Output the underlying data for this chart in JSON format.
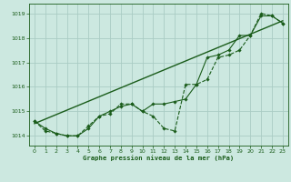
{
  "title": "Graphe pression niveau de la mer (hPa)",
  "bg_color": "#cce8e0",
  "grid_color": "#aaccC4",
  "line_color": "#1a5c1a",
  "xlim": [
    -0.5,
    23.5
  ],
  "ylim": [
    1013.6,
    1019.4
  ],
  "yticks": [
    1014,
    1015,
    1016,
    1017,
    1018,
    1019
  ],
  "xticks": [
    0,
    1,
    2,
    3,
    4,
    5,
    6,
    7,
    8,
    9,
    10,
    11,
    12,
    13,
    14,
    15,
    16,
    17,
    18,
    19,
    20,
    21,
    22,
    23
  ],
  "series_dashed_x": [
    0,
    1,
    2,
    3,
    4,
    5,
    6,
    7,
    8,
    9,
    10,
    11,
    12,
    13,
    14,
    15,
    16,
    17,
    18,
    19,
    20,
    21,
    22,
    23
  ],
  "series_dashed_y": [
    1014.6,
    1014.2,
    1014.1,
    1014.0,
    1014.0,
    1014.4,
    1014.8,
    1014.9,
    1015.3,
    1015.3,
    1015.0,
    1014.8,
    1014.3,
    1014.2,
    1016.1,
    1016.1,
    1016.3,
    1017.2,
    1017.3,
    1017.5,
    1018.1,
    1019.0,
    1018.9,
    1018.6
  ],
  "series_solid_x": [
    0,
    1,
    2,
    3,
    4,
    5,
    6,
    7,
    8,
    9,
    10,
    11,
    12,
    13,
    14,
    15,
    16,
    17,
    18,
    19,
    20,
    21,
    22,
    23
  ],
  "series_solid_y": [
    1014.6,
    1014.3,
    1014.1,
    1014.0,
    1014.0,
    1014.3,
    1014.8,
    1015.0,
    1015.2,
    1015.3,
    1015.0,
    1015.3,
    1015.3,
    1015.4,
    1015.5,
    1016.1,
    1017.2,
    1017.3,
    1017.5,
    1018.1,
    1018.1,
    1018.9,
    1018.9,
    1018.6
  ],
  "trend_x": [
    0,
    23
  ],
  "trend_y": [
    1014.5,
    1018.7
  ]
}
